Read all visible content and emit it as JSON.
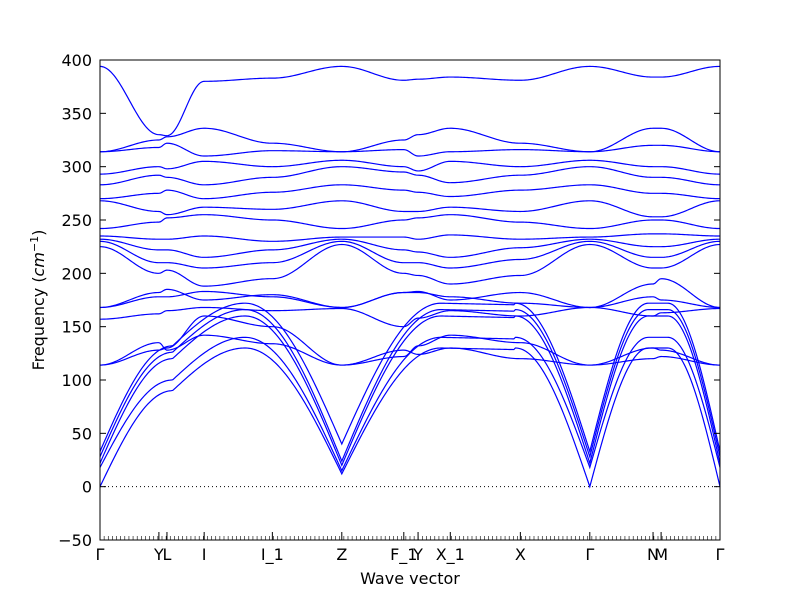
{
  "chart_data": {
    "type": "line",
    "xlabel": "Wave vector",
    "ylabel_text": "Frequency (",
    "ylabel_unit": "cm",
    "ylabel_exp": "−1",
    "ylabel_close": ")",
    "ylim": [
      -50,
      400
    ],
    "yticks": [
      -50,
      0,
      50,
      100,
      150,
      200,
      250,
      300,
      350,
      400
    ],
    "grid": false,
    "line_color": "#0000ff",
    "zero_line": {
      "y": 0,
      "style": "dotted",
      "color": "#000000"
    },
    "high_symmetry_points": [
      {
        "label": "Γ",
        "x": 0.0
      },
      {
        "label": "Y",
        "x": 0.095
      },
      {
        "label": "L",
        "x": 0.108
      },
      {
        "label": "I",
        "x": 0.168
      },
      {
        "label": "I_1",
        "x": 0.278
      },
      {
        "label": "Z",
        "x": 0.39
      },
      {
        "label": "F_1",
        "x": 0.49
      },
      {
        "label": "Y",
        "x": 0.513
      },
      {
        "label": "X_1",
        "x": 0.565
      },
      {
        "label": "X",
        "x": 0.678
      },
      {
        "label": "Γ",
        "x": 0.79
      },
      {
        "label": "N",
        "x": 0.892
      },
      {
        "label": "M",
        "x": 0.905
      },
      {
        "label": "Γ",
        "x": 1.0
      }
    ],
    "x_range": [
      0,
      1
    ],
    "acoustic_bands": [
      {
        "f0": 0,
        "plateau": 90,
        "z": 12
      },
      {
        "f0": 18,
        "plateau": 100,
        "z": 15
      },
      {
        "f0": 22,
        "plateau": 120,
        "z": 20
      },
      {
        "f0": 28,
        "plateau": 126,
        "z": 24
      },
      {
        "f0": 33,
        "plateau": 132,
        "z": 40
      }
    ],
    "optical_bands": [
      {
        "values": [
          114,
          135,
          128,
          142,
          134,
          114,
          128,
          124,
          130,
          120,
          114,
          120,
          122,
          114
        ]
      },
      {
        "values": [
          114,
          128,
          130,
          160,
          150,
          114,
          122,
          132,
          142,
          135,
          114,
          130,
          128,
          114
        ]
      },
      {
        "values": [
          157,
          162,
          165,
          168,
          165,
          167,
          150,
          158,
          165,
          160,
          168,
          160,
          163,
          167
        ]
      },
      {
        "values": [
          168,
          178,
          178,
          183,
          178,
          168,
          182,
          182,
          178,
          172,
          168,
          178,
          175,
          168
        ]
      },
      {
        "values": [
          168,
          182,
          185,
          175,
          180,
          168,
          182,
          183,
          175,
          182,
          168,
          190,
          195,
          168
        ]
      },
      {
        "values": [
          225,
          200,
          203,
          188,
          195,
          227,
          200,
          198,
          190,
          198,
          227,
          205,
          205,
          227
        ]
      },
      {
        "values": [
          230,
          210,
          210,
          205,
          210,
          230,
          210,
          210,
          205,
          213,
          230,
          215,
          215,
          230
        ]
      },
      {
        "values": [
          232,
          222,
          222,
          215,
          222,
          232,
          222,
          220,
          215,
          224,
          232,
          225,
          225,
          232
        ]
      },
      {
        "values": [
          235,
          232,
          232,
          235,
          230,
          234,
          234,
          232,
          236,
          232,
          234,
          237,
          237,
          235
        ]
      },
      {
        "values": [
          242,
          248,
          252,
          255,
          250,
          242,
          250,
          252,
          255,
          248,
          242,
          250,
          250,
          242
        ]
      },
      {
        "values": [
          268,
          258,
          255,
          262,
          260,
          268,
          258,
          258,
          262,
          258,
          268,
          253,
          253,
          268
        ]
      },
      {
        "values": [
          270,
          275,
          278,
          270,
          276,
          283,
          278,
          276,
          272,
          278,
          283,
          275,
          275,
          270
        ]
      },
      {
        "values": [
          283,
          292,
          290,
          283,
          290,
          300,
          295,
          292,
          285,
          292,
          300,
          290,
          290,
          283
        ]
      },
      {
        "values": [
          293,
          300,
          298,
          305,
          300,
          306,
          300,
          296,
          305,
          300,
          306,
          300,
          300,
          293
        ]
      },
      {
        "values": [
          314,
          318,
          322,
          310,
          315,
          314,
          316,
          310,
          314,
          316,
          314,
          320,
          320,
          314
        ]
      },
      {
        "values": [
          314,
          325,
          328,
          336,
          322,
          314,
          325,
          330,
          336,
          322,
          314,
          336,
          336,
          314
        ]
      },
      {
        "values": [
          394,
          330,
          329,
          380,
          383,
          394,
          381,
          382,
          384,
          381,
          394,
          384,
          384,
          394
        ]
      }
    ]
  }
}
